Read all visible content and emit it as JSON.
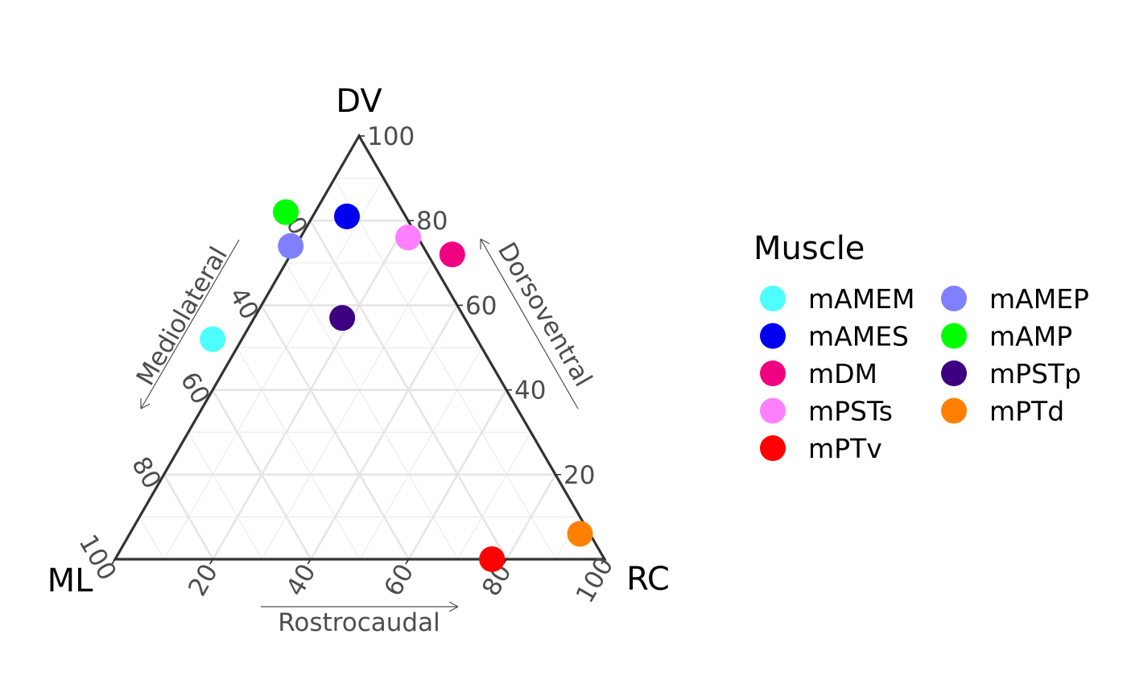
{
  "chart_data": {
    "type": "scatter",
    "subtype": "ternary",
    "vertices": {
      "top": "DV",
      "left": "ML",
      "right": "RC"
    },
    "axis_titles": {
      "left": "Mediolateral",
      "right": "Dorsoventral",
      "bottom": "Rostrocaudal"
    },
    "ticks": [
      "20",
      "40",
      "60",
      "80",
      "100"
    ],
    "axis_range": [
      0,
      100
    ],
    "grid": true,
    "legend": {
      "title": "Muscle",
      "placement": "right",
      "columns": 2
    },
    "series": [
      {
        "name": "mAMEM",
        "color": "#4DFFFF",
        "ML": 54,
        "DV": 52,
        "RC": -6
      },
      {
        "name": "mAMES",
        "color": "#0000EE",
        "ML": 12,
        "DV": 81,
        "RC": 7
      },
      {
        "name": "mDM",
        "color": "#F0007F",
        "ML": -5,
        "DV": 72,
        "RC": 33
      },
      {
        "name": "mPSTs",
        "color": "#FF80FF",
        "ML": 2,
        "DV": 76,
        "RC": 22
      },
      {
        "name": "mPTv",
        "color": "#FF0000",
        "ML": 23,
        "DV": 0,
        "RC": 77
      },
      {
        "name": "mAMEP",
        "color": "#8080FF",
        "ML": 27,
        "DV": 74,
        "RC": -1
      },
      {
        "name": "mAMP",
        "color": "#00FF00",
        "ML": 24,
        "DV": 82,
        "RC": -6
      },
      {
        "name": "mPSTp",
        "color": "#3D0080",
        "ML": 25,
        "DV": 57,
        "RC": 18
      },
      {
        "name": "mPTd",
        "color": "#FF8000",
        "ML": 2,
        "DV": 6,
        "RC": 92
      }
    ]
  }
}
